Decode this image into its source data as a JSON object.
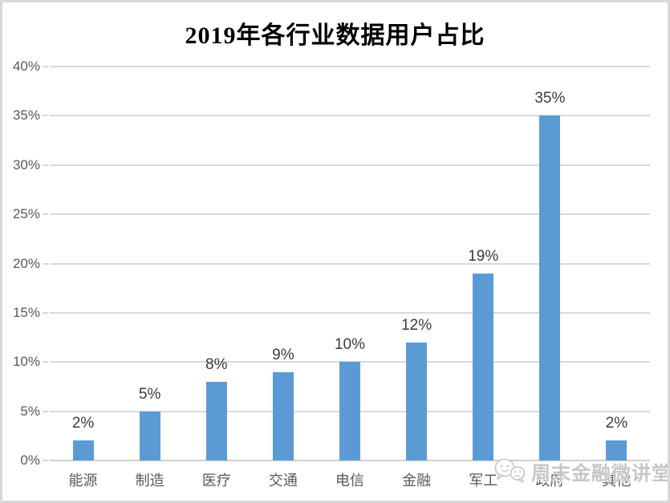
{
  "chart_data": {
    "type": "bar",
    "title": "2019年各行业数据用户占比",
    "categories": [
      "能源",
      "制造",
      "医疗",
      "交通",
      "电信",
      "金融",
      "军工",
      "政府",
      "其他"
    ],
    "values": [
      2,
      5,
      8,
      9,
      10,
      12,
      19,
      35,
      2
    ],
    "value_labels": [
      "2%",
      "5%",
      "8%",
      "9%",
      "10%",
      "12%",
      "19%",
      "35%",
      "2%"
    ],
    "xlabel": "",
    "ylabel": "",
    "ylim": [
      0,
      40
    ],
    "ytick_interval": 5,
    "ytick_labels": [
      "0%",
      "5%",
      "10%",
      "15%",
      "20%",
      "25%",
      "30%",
      "35%",
      "40%"
    ],
    "grid": true,
    "legend": false,
    "colors": {
      "bar": "#5B9BD5",
      "gridline": "#D9D9D9",
      "baseline": "#D0D0D0",
      "axis_text": "#595959",
      "value_label_text": "#3B3B3B",
      "title_text": "#000000",
      "frame_border": "#D9D9D9"
    }
  },
  "watermark": {
    "icon": "chat-bubbles-icon",
    "text": "周末金融微讲堂",
    "color": "#C6C6C6"
  }
}
